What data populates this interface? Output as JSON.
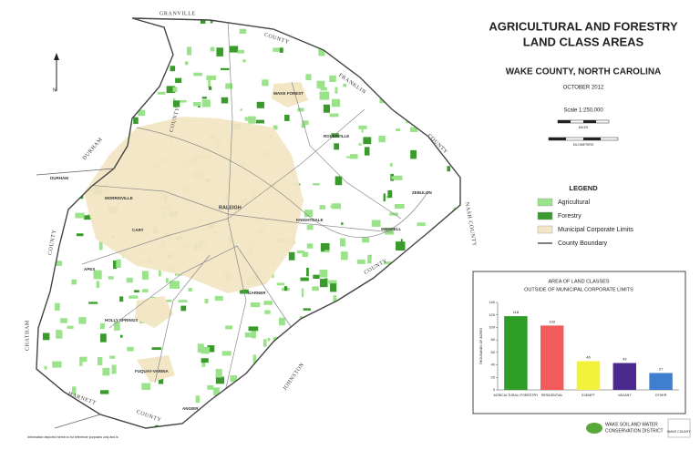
{
  "header": {
    "title_line1": "AGRICULTURAL AND FORESTRY",
    "title_line2": "LAND CLASS AREAS",
    "subtitle": "WAKE COUNTY, NORTH CAROLINA",
    "date": "OCTOBER 2012",
    "scale": "Scale 1:250,000",
    "miles": "MILES",
    "kilometers": "KILOMETERS"
  },
  "legend": {
    "title": "LEGEND",
    "items": [
      {
        "label": "Agricultural",
        "color": "#9be38a"
      },
      {
        "label": "Forestry",
        "color": "#3a9a2c"
      },
      {
        "label": "Municipal Corporate Limits",
        "color": "#f3e6c4"
      },
      {
        "label": "County Boundary",
        "color": "#555555"
      }
    ]
  },
  "map": {
    "north": "N",
    "counties": [
      "GRANVILLE",
      "COUNTY",
      "FRANKLIN",
      "COUNTY",
      "NASH COUNTY",
      "COUNTY",
      "JOHNSTON",
      "COUNTY",
      "HARNETT",
      "CHATHAM",
      "COUNTY",
      "DURHAM",
      "COUNTY"
    ],
    "towns": [
      "WAKE FOREST",
      "ROLESVILLE",
      "RALEIGH",
      "DURHAM",
      "MORRISVILLE",
      "CARY",
      "APEX",
      "HOLLY SPRINGS",
      "FUQUAY-VARINA",
      "ANGIER",
      "GARNER",
      "KNIGHTDALE",
      "ZEBULON",
      "WENDELL"
    ],
    "disclaimer": "Information depicted herein is for reference purposes only and is"
  },
  "footer": {
    "district": "WAKE SOIL AND WATER",
    "district2": "CONSERVATION DISTRICT",
    "county": "WAKE COUNTY"
  },
  "chart_data": {
    "type": "bar",
    "title": "AREA OF LAND CLASSES",
    "subtitle": "OUTSIDE OF MUNICIPAL CORPORATE LIMITS",
    "y_label": "THOUSANDS OF ACRES",
    "categories": [
      "AGRICULTURAL/ FORESTRY",
      "RESIDENTIAL",
      "EXEMPT",
      "VACANT",
      "OTHER"
    ],
    "values": [
      118,
      103,
      46,
      43,
      27
    ],
    "colors": [
      "#2e9e27",
      "#f25b5b",
      "#f2f23c",
      "#4a2a8e",
      "#3f7fcf"
    ],
    "ylim": [
      0,
      140
    ],
    "yticks": [
      0,
      20,
      40,
      60,
      80,
      100,
      120,
      140
    ]
  }
}
